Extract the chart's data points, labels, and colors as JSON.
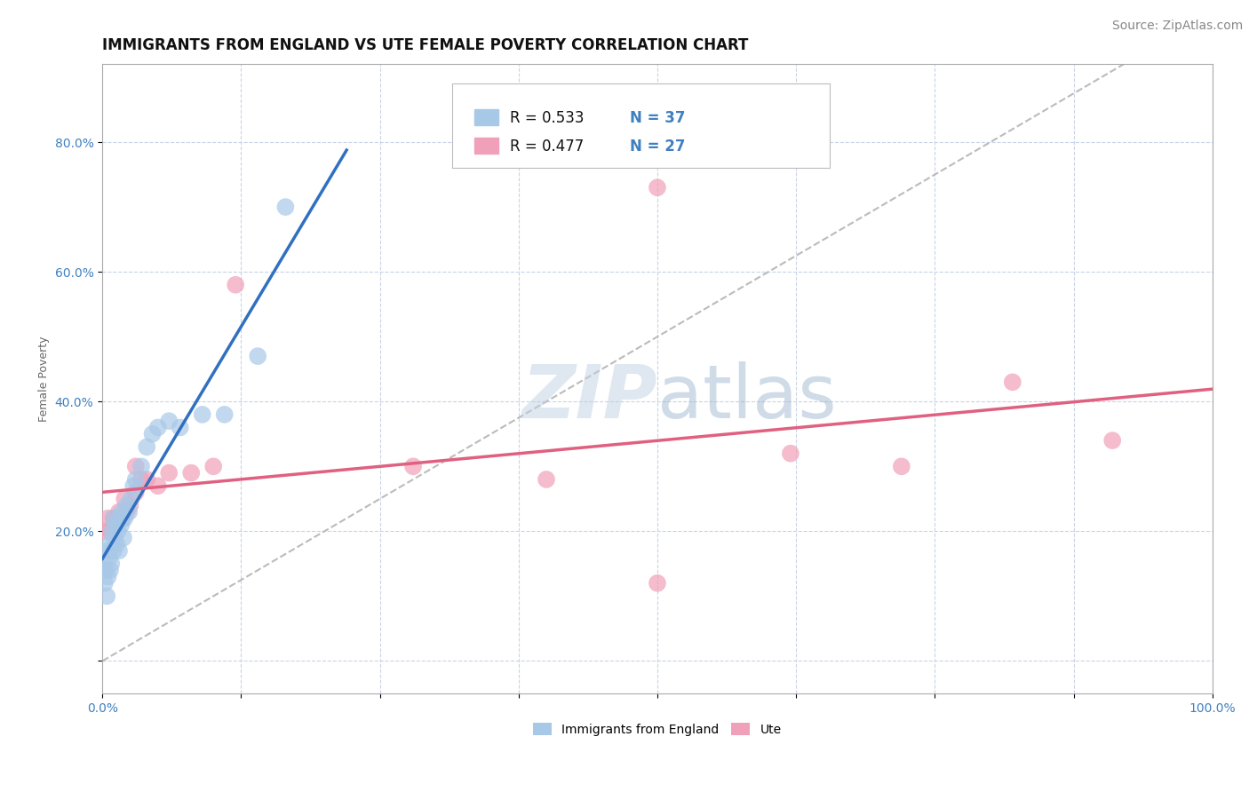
{
  "title": "IMMIGRANTS FROM ENGLAND VS UTE FEMALE POVERTY CORRELATION CHART",
  "source": "Source: ZipAtlas.com",
  "ylabel": "Female Poverty",
  "watermark": "ZIPatlas",
  "xlim": [
    0.0,
    1.0
  ],
  "ylim": [
    -0.05,
    0.92
  ],
  "xtick_positions": [
    0.0,
    0.125,
    0.25,
    0.375,
    0.5,
    0.625,
    0.75,
    0.875,
    1.0
  ],
  "xtick_labels": [
    "0.0%",
    "",
    "",
    "",
    "",
    "",
    "",
    "",
    "100.0%"
  ],
  "ytick_positions": [
    0.0,
    0.2,
    0.4,
    0.6,
    0.8
  ],
  "ytick_labels": [
    "",
    "20.0%",
    "40.0%",
    "60.0%",
    "80.0%"
  ],
  "england_color": "#a8c8e8",
  "ute_color": "#f0a0b8",
  "england_line_color": "#3070c0",
  "ute_line_color": "#e06080",
  "diagonal_color": "#bbbbbb",
  "R_england": 0.533,
  "N_england": 37,
  "R_ute": 0.477,
  "N_ute": 27,
  "england_scatter_x": [
    0.002,
    0.003,
    0.004,
    0.005,
    0.005,
    0.006,
    0.007,
    0.007,
    0.008,
    0.009,
    0.01,
    0.01,
    0.011,
    0.012,
    0.013,
    0.014,
    0.015,
    0.016,
    0.017,
    0.018,
    0.019,
    0.02,
    0.022,
    0.024,
    0.026,
    0.028,
    0.03,
    0.035,
    0.04,
    0.045,
    0.05,
    0.06,
    0.07,
    0.09,
    0.11,
    0.14,
    0.165
  ],
  "england_scatter_y": [
    0.12,
    0.14,
    0.1,
    0.13,
    0.17,
    0.16,
    0.14,
    0.18,
    0.15,
    0.2,
    0.17,
    0.22,
    0.19,
    0.21,
    0.18,
    0.2,
    0.17,
    0.22,
    0.21,
    0.23,
    0.19,
    0.22,
    0.24,
    0.23,
    0.25,
    0.27,
    0.28,
    0.3,
    0.33,
    0.35,
    0.36,
    0.37,
    0.36,
    0.38,
    0.38,
    0.47,
    0.7
  ],
  "england_scatter_x_outliers": [
    0.035
  ],
  "england_scatter_y_outliers": [
    0.7
  ],
  "ute_scatter_x": [
    0.003,
    0.005,
    0.007,
    0.01,
    0.012,
    0.015,
    0.018,
    0.02,
    0.022,
    0.025,
    0.03,
    0.035,
    0.04,
    0.05,
    0.06,
    0.08,
    0.1,
    0.12,
    0.28,
    0.4,
    0.5,
    0.62,
    0.72,
    0.82,
    0.91,
    0.5,
    0.03
  ],
  "ute_scatter_y": [
    0.2,
    0.22,
    0.2,
    0.22,
    0.21,
    0.23,
    0.22,
    0.25,
    0.23,
    0.24,
    0.26,
    0.28,
    0.28,
    0.27,
    0.29,
    0.29,
    0.3,
    0.58,
    0.3,
    0.28,
    0.12,
    0.32,
    0.3,
    0.43,
    0.34,
    0.73,
    0.3
  ],
  "background_color": "#ffffff",
  "grid_color": "#c8d4e8",
  "title_fontsize": 12,
  "axis_label_fontsize": 9,
  "tick_fontsize": 10,
  "legend_fontsize": 12,
  "source_fontsize": 10,
  "tick_color": "#4080c0"
}
